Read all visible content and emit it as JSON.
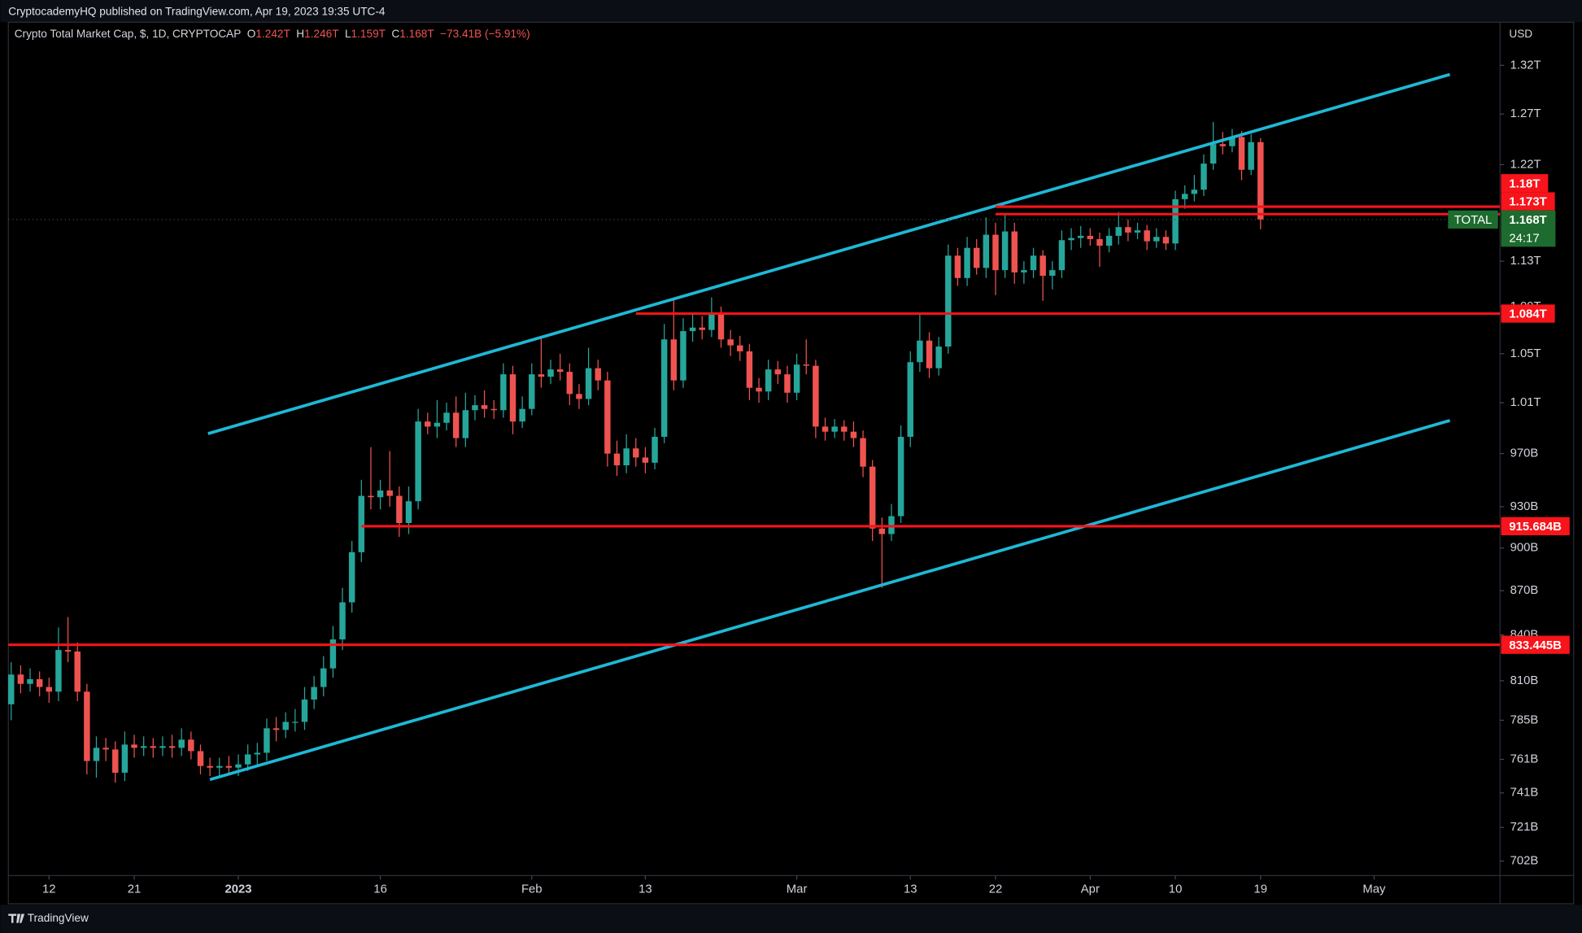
{
  "header": {
    "publisher": "CryptocademyHQ published on TradingView.com, Apr 19, 2023 19:35 UTC-4"
  },
  "chart_data": {
    "type": "candlestick",
    "title": "Crypto Total Market Cap, $, 1D, CRYPTOCAP",
    "ohlc_legend": {
      "o_label": "O",
      "o": "1.242T",
      "h_label": "H",
      "h": "1.246T",
      "l_label": "L",
      "l": "1.159T",
      "c_label": "C",
      "c": "1.168T",
      "change": "−73.41B (−5.91%)"
    },
    "up_color": "#26a69a",
    "down_color": "#ef5350",
    "open": [
      795,
      814,
      808,
      811,
      806,
      803,
      830,
      829,
      803,
      760,
      768,
      767,
      753,
      770,
      768,
      769,
      768,
      769,
      768,
      773,
      766,
      757,
      756,
      757,
      756,
      758,
      764,
      765,
      780,
      779,
      784,
      784,
      798,
      806,
      818,
      837,
      862,
      897,
      938,
      937,
      942,
      938,
      918,
      934,
      995,
      991,
      994,
      1002,
      982,
      1004,
      1008,
      1005,
      1004,
      1033,
      995,
      1005,
      1033,
      1031,
      1037,
      1035,
      1017,
      1013,
      1038,
      1028,
      970,
      961,
      974,
      967,
      963,
      983,
      1062,
      1028,
      1069,
      1072,
      1070,
      1083,
      1062,
      1057,
      1052,
      1022,
      1019,
      1037,
      1033,
      1018,
      1041,
      1040,
      991,
      987,
      991,
      987,
      982,
      960,
      914,
      910,
      923,
      983,
      1043,
      1061,
      1038,
      1056,
      1135,
      1115,
      1142,
      1124,
      1154,
      1122,
      1157,
      1120,
      1122,
      1135,
      1117,
      1122,
      1149,
      1151,
      1153,
      1150,
      1144,
      1153,
      1161,
      1156,
      1158,
      1148,
      1152,
      1146,
      1187,
      1192,
      1196,
      1221,
      1240,
      1238,
      1247,
      1215,
      1242
    ],
    "high": [
      822,
      820,
      818,
      816,
      812,
      845,
      852,
      835,
      808,
      775,
      774,
      772,
      778,
      776,
      775,
      774,
      775,
      776,
      780,
      778,
      770,
      762,
      762,
      763,
      764,
      770,
      771,
      786,
      787,
      790,
      792,
      806,
      813,
      826,
      846,
      872,
      905,
      950,
      975,
      950,
      972,
      945,
      945,
      1005,
      1002,
      1012,
      1010,
      1015,
      1018,
      1016,
      1020,
      1012,
      1042,
      1040,
      1015,
      1042,
      1065,
      1045,
      1050,
      1042,
      1025,
      1055,
      1045,
      1035,
      980,
      985,
      982,
      975,
      990,
      1075,
      1098,
      1080,
      1085,
      1082,
      1098,
      1090,
      1070,
      1065,
      1058,
      1030,
      1045,
      1044,
      1040,
      1050,
      1062,
      1045,
      998,
      997,
      996,
      995,
      988,
      965,
      922,
      932,
      992,
      1052,
      1085,
      1068,
      1064,
      1145,
      1142,
      1152,
      1150,
      1170,
      1165,
      1172,
      1165,
      1130,
      1142,
      1140,
      1130,
      1158,
      1160,
      1162,
      1160,
      1156,
      1160,
      1175,
      1168,
      1165,
      1163,
      1160,
      1158,
      1195,
      1200,
      1210,
      1230,
      1262,
      1252,
      1255,
      1253,
      1250,
      1246
    ],
    "low": [
      785,
      802,
      803,
      800,
      796,
      797,
      822,
      797,
      752,
      750,
      760,
      747,
      748,
      762,
      763,
      762,
      763,
      762,
      763,
      761,
      752,
      751,
      751,
      752,
      751,
      754,
      758,
      760,
      772,
      774,
      778,
      779,
      792,
      800,
      812,
      830,
      855,
      890,
      928,
      928,
      930,
      908,
      910,
      928,
      985,
      982,
      988,
      975,
      975,
      996,
      998,
      997,
      998,
      985,
      990,
      1000,
      1022,
      1025,
      1028,
      1008,
      1005,
      1008,
      1020,
      960,
      953,
      955,
      960,
      955,
      958,
      978,
      1020,
      1022,
      1060,
      1062,
      1064,
      1055,
      1048,
      1044,
      1012,
      1010,
      1012,
      1025,
      1010,
      1012,
      1033,
      982,
      980,
      982,
      980,
      975,
      952,
      905,
      872,
      905,
      918,
      975,
      1035,
      1030,
      1032,
      1050,
      1108,
      1108,
      1118,
      1115,
      1100,
      1115,
      1110,
      1110,
      1115,
      1095,
      1105,
      1115,
      1140,
      1142,
      1144,
      1125,
      1138,
      1145,
      1148,
      1150,
      1140,
      1142,
      1140,
      1140,
      1178,
      1185,
      1190,
      1215,
      1230,
      1232,
      1205,
      1210,
      1159
    ],
    "close": [
      814,
      808,
      811,
      806,
      803,
      830,
      829,
      803,
      760,
      768,
      767,
      753,
      770,
      768,
      769,
      768,
      769,
      768,
      773,
      766,
      757,
      756,
      757,
      756,
      758,
      764,
      765,
      780,
      779,
      784,
      784,
      798,
      806,
      818,
      837,
      862,
      897,
      938,
      937,
      942,
      938,
      918,
      934,
      995,
      991,
      994,
      1002,
      982,
      1004,
      1008,
      1005,
      1004,
      1033,
      995,
      1005,
      1033,
      1031,
      1037,
      1035,
      1017,
      1013,
      1038,
      1028,
      970,
      961,
      974,
      967,
      963,
      983,
      1062,
      1028,
      1069,
      1072,
      1070,
      1083,
      1062,
      1057,
      1052,
      1022,
      1019,
      1037,
      1033,
      1018,
      1041,
      1040,
      991,
      987,
      991,
      987,
      982,
      960,
      914,
      910,
      923,
      983,
      1043,
      1061,
      1038,
      1056,
      1135,
      1115,
      1142,
      1124,
      1154,
      1122,
      1157,
      1120,
      1122,
      1135,
      1117,
      1122,
      1149,
      1151,
      1153,
      1150,
      1144,
      1153,
      1161,
      1156,
      1158,
      1148,
      1152,
      1146,
      1187,
      1192,
      1196,
      1221,
      1240,
      1238,
      1247,
      1215,
      1242,
      1168
    ],
    "log_scale": true,
    "y_unit": "USD",
    "ylim": [
      694,
      1366
    ],
    "yticks": [
      {
        "value": 1320,
        "label": "1.32T"
      },
      {
        "value": 1270,
        "label": "1.27T"
      },
      {
        "value": 1220,
        "label": "1.22T"
      },
      {
        "value": 1130,
        "label": "1.13T"
      },
      {
        "value": 1090,
        "label": "1.09T"
      },
      {
        "value": 1050,
        "label": "1.05T"
      },
      {
        "value": 1010,
        "label": "1.01T"
      },
      {
        "value": 970,
        "label": "970B"
      },
      {
        "value": 930,
        "label": "930B"
      },
      {
        "value": 900,
        "label": "900B"
      },
      {
        "value": 870,
        "label": "870B"
      },
      {
        "value": 840,
        "label": "840B"
      },
      {
        "value": 810,
        "label": "810B"
      },
      {
        "value": 785,
        "label": "785B"
      },
      {
        "value": 761,
        "label": "761B"
      },
      {
        "value": 741,
        "label": "741B"
      },
      {
        "value": 721,
        "label": "721B"
      },
      {
        "value": 702,
        "label": "702B"
      }
    ],
    "xlim": [
      -0.3,
      157.3
    ],
    "xticks": [
      {
        "value": 4,
        "label": "12"
      },
      {
        "value": 13,
        "label": "21"
      },
      {
        "value": 24,
        "label": "2023"
      },
      {
        "value": 39,
        "label": "16"
      },
      {
        "value": 55,
        "label": "Feb"
      },
      {
        "value": 67,
        "label": "13"
      },
      {
        "value": 83,
        "label": "Mar"
      },
      {
        "value": 95,
        "label": "13"
      },
      {
        "value": 104,
        "label": "22"
      },
      {
        "value": 114,
        "label": "Apr"
      },
      {
        "value": 123,
        "label": "10"
      },
      {
        "value": 132,
        "label": "19"
      },
      {
        "value": 144,
        "label": "May"
      }
    ],
    "level_color": "#f7141a",
    "levels": [
      {
        "value": 1180,
        "label": "1.18T",
        "from": 104
      },
      {
        "value": 1173,
        "label": "1.173T",
        "from": 104
      },
      {
        "value": 1084,
        "label": "1.084T",
        "from": 66
      },
      {
        "value": 915.684,
        "label": "915.684B",
        "from": 37
      },
      {
        "value": 833.445,
        "label": "833.445B",
        "from": -0.3
      }
    ],
    "channel_color": "#1fb8d6",
    "channel": [
      {
        "x": [
          20.8,
          152.0
        ],
        "y": [
          985.5,
          1310.5
        ]
      },
      {
        "x": [
          21.0,
          152.0
        ],
        "y": [
          748.9,
          995.8
        ]
      }
    ],
    "last_price": {
      "value": 1168,
      "label": "1.168T",
      "symbol": "TOTAL",
      "countdown": "24:17",
      "color": "#1e6b2f"
    }
  },
  "footer": {
    "brand": "TradingView"
  }
}
